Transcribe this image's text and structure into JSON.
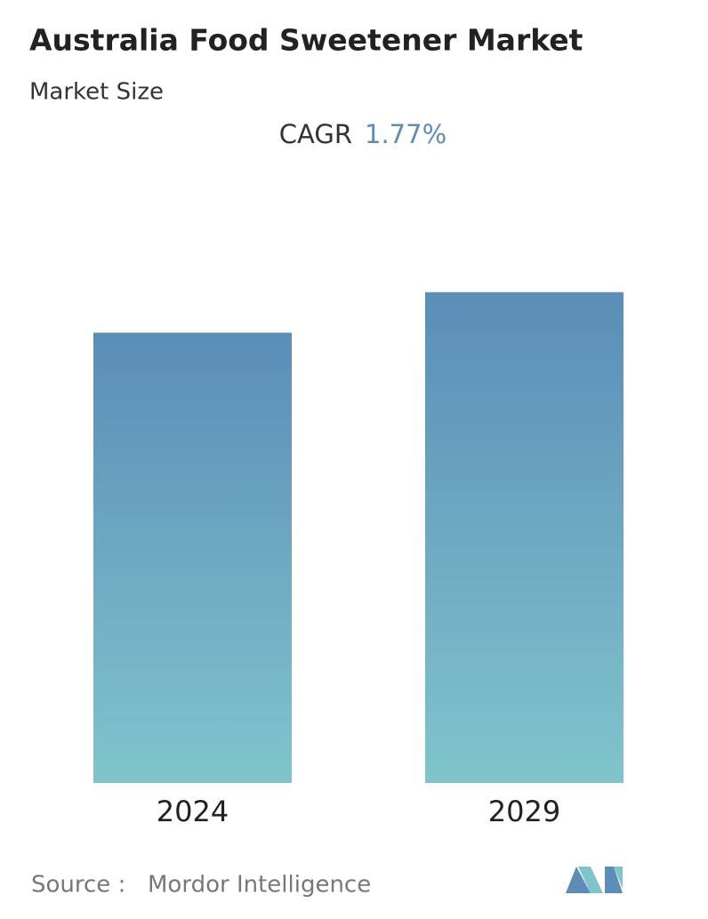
{
  "chart_data": {
    "type": "bar",
    "title": "Australia Food Sweetener Market",
    "subtitle": "Market Size",
    "cagr_label": "CAGR",
    "cagr_value": "1.77%",
    "categories": [
      "2024",
      "2029"
    ],
    "values": [
      1,
      1.09
    ],
    "ylim": [
      0,
      1.2
    ],
    "color_top": "#5b8db8",
    "color_bottom": "#80c4cb",
    "source_label": "Source :",
    "source": "Mordor Intelligence"
  }
}
